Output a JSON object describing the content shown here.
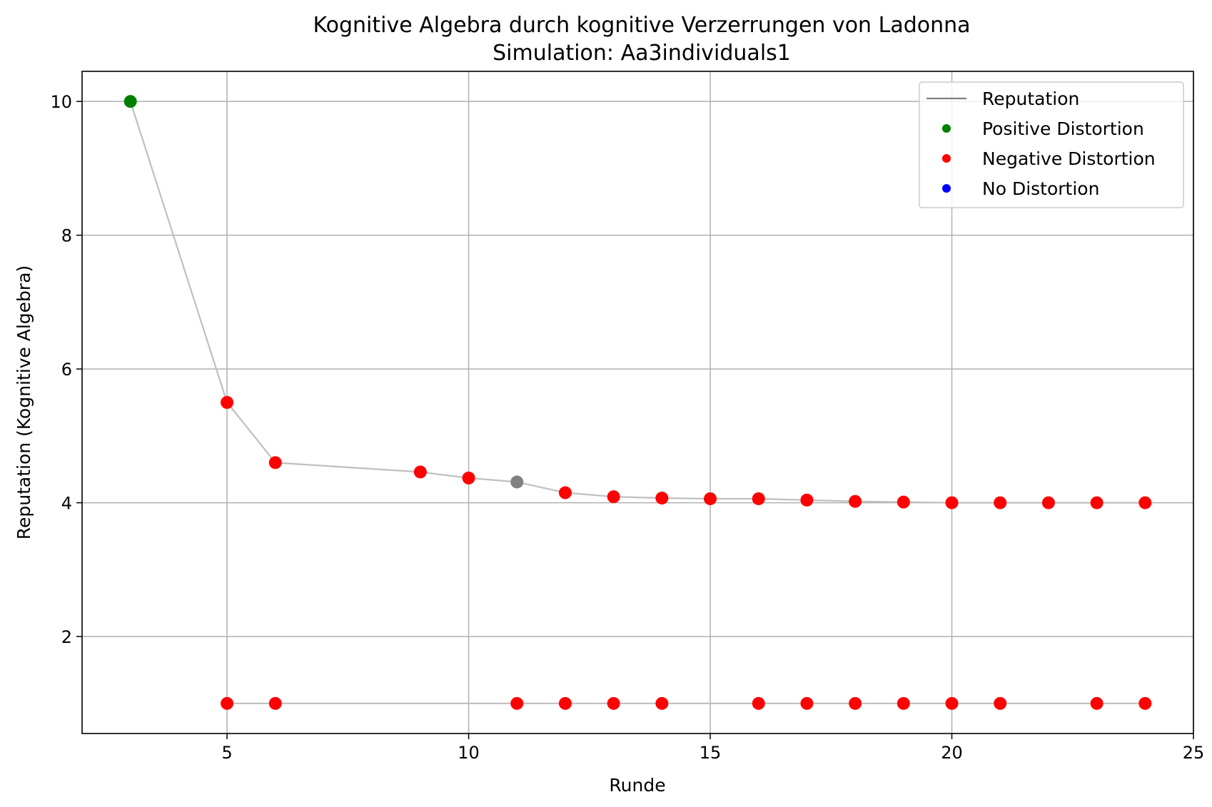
{
  "chart_data": {
    "type": "scatter",
    "title": "Kognitive Algebra durch kognitive Verzerrungen von Ladonna",
    "subtitle": "Simulation: Aa3individuals1",
    "xlabel": "Runde",
    "ylabel": "Reputation (Kognitive Algebra)",
    "xlim": [
      2,
      25
    ],
    "ylim": [
      0.55,
      10.45
    ],
    "xticks": [
      5,
      10,
      15,
      20,
      25
    ],
    "yticks": [
      2,
      4,
      6,
      8,
      10
    ],
    "grid": true,
    "legend_position": "top-right",
    "legend": [
      {
        "label": "Reputation",
        "kind": "line",
        "color": "#808080"
      },
      {
        "label": "Positive Distortion",
        "kind": "dot",
        "color": "#008000"
      },
      {
        "label": "Negative Distortion",
        "kind": "dot",
        "color": "#ff0000"
      },
      {
        "label": "No Distortion",
        "kind": "dot",
        "color": "#0000ff"
      }
    ],
    "series": [
      {
        "line_color": "#bfbfbf",
        "points": [
          {
            "x": 3,
            "y": 10.0,
            "color": "#008000"
          },
          {
            "x": 5,
            "y": 5.5,
            "color": "#ff0000"
          },
          {
            "x": 6,
            "y": 4.6,
            "color": "#ff0000"
          },
          {
            "x": 9,
            "y": 4.46,
            "color": "#ff0000"
          },
          {
            "x": 10,
            "y": 4.37,
            "color": "#ff0000"
          },
          {
            "x": 11,
            "y": 4.31,
            "color": "#808080"
          },
          {
            "x": 12,
            "y": 4.15,
            "color": "#ff0000"
          },
          {
            "x": 13,
            "y": 4.09,
            "color": "#ff0000"
          },
          {
            "x": 14,
            "y": 4.07,
            "color": "#ff0000"
          },
          {
            "x": 15,
            "y": 4.06,
            "color": "#ff0000"
          },
          {
            "x": 16,
            "y": 4.06,
            "color": "#ff0000"
          },
          {
            "x": 17,
            "y": 4.04,
            "color": "#ff0000"
          },
          {
            "x": 18,
            "y": 4.02,
            "color": "#ff0000"
          },
          {
            "x": 19,
            "y": 4.01,
            "color": "#ff0000"
          },
          {
            "x": 20,
            "y": 4.0,
            "color": "#ff0000"
          },
          {
            "x": 21,
            "y": 4.0,
            "color": "#ff0000"
          },
          {
            "x": 22,
            "y": 4.0,
            "color": "#ff0000"
          },
          {
            "x": 23,
            "y": 4.0,
            "color": "#ff0000"
          },
          {
            "x": 24,
            "y": 4.0,
            "color": "#ff0000"
          }
        ]
      },
      {
        "line_color": "#bfbfbf",
        "points": [
          {
            "x": 5,
            "y": 1.0,
            "color": "#ff0000"
          },
          {
            "x": 6,
            "y": 1.0,
            "color": "#ff0000"
          },
          {
            "x": 11,
            "y": 1.0,
            "color": "#ff0000"
          },
          {
            "x": 12,
            "y": 1.0,
            "color": "#ff0000"
          },
          {
            "x": 13,
            "y": 1.0,
            "color": "#ff0000"
          },
          {
            "x": 14,
            "y": 1.0,
            "color": "#ff0000"
          },
          {
            "x": 16,
            "y": 1.0,
            "color": "#ff0000"
          },
          {
            "x": 17,
            "y": 1.0,
            "color": "#ff0000"
          },
          {
            "x": 18,
            "y": 1.0,
            "color": "#ff0000"
          },
          {
            "x": 19,
            "y": 1.0,
            "color": "#ff0000"
          },
          {
            "x": 20,
            "y": 1.0,
            "color": "#ff0000"
          },
          {
            "x": 21,
            "y": 1.0,
            "color": "#ff0000"
          },
          {
            "x": 23,
            "y": 1.0,
            "color": "#ff0000"
          },
          {
            "x": 24,
            "y": 1.0,
            "color": "#ff0000"
          }
        ]
      }
    ]
  }
}
